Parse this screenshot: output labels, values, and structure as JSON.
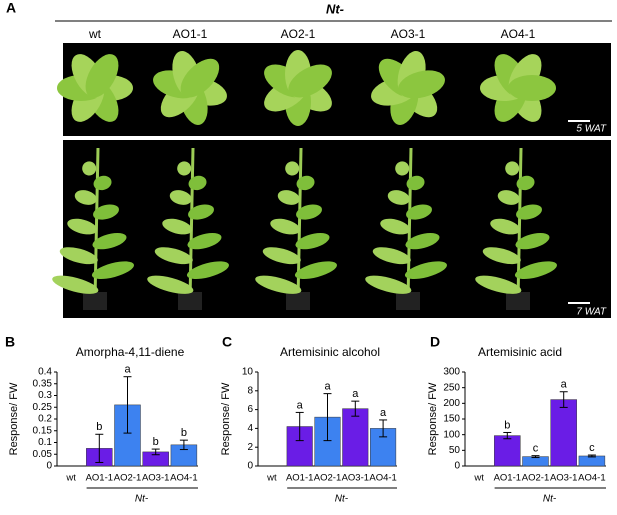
{
  "panel_a": {
    "label": "A",
    "group": "Nt-",
    "genotypes": [
      "wt",
      "AO1-1",
      "AO2-1",
      "AO3-1",
      "AO4-1"
    ],
    "stages": [
      "5 WAT",
      "7 WAT"
    ]
  },
  "chart_data": [
    {
      "type": "bar",
      "panel": "B",
      "title": "Amorpha-4,11-diene",
      "ylabel": "Response/ FW",
      "xlabel": "Nt-",
      "categories": [
        "wt",
        "AO1-1",
        "AO2-1",
        "AO3-1",
        "AO4-1"
      ],
      "values": [
        0,
        0.075,
        0.26,
        0.06,
        0.09
      ],
      "errors": [
        0,
        0.06,
        0.12,
        0.012,
        0.02
      ],
      "letters": [
        null,
        "b",
        "a",
        "b",
        "b"
      ],
      "colors": [
        "#6a1de6",
        "#6a1de6",
        "#3d82f0",
        "#6a1de6",
        "#3d82f0"
      ],
      "ylim": [
        0,
        0.4
      ],
      "yticks": [
        0,
        0.05,
        0.1,
        0.15,
        0.2,
        0.25,
        0.3,
        0.35,
        0.4
      ]
    },
    {
      "type": "bar",
      "panel": "C",
      "title": "Artemisinic alcohol",
      "ylabel": "Response/ FW",
      "xlabel": "Nt-",
      "categories": [
        "wt",
        "AO1-1",
        "AO2-1",
        "AO3-1",
        "AO4-1"
      ],
      "values": [
        0,
        4.2,
        5.2,
        6.1,
        4.0
      ],
      "errors": [
        0,
        1.5,
        2.5,
        0.8,
        0.9
      ],
      "letters": [
        null,
        "a",
        "a",
        "a",
        "a"
      ],
      "colors": [
        "#6a1de6",
        "#6a1de6",
        "#3d82f0",
        "#6a1de6",
        "#3d82f0"
      ],
      "ylim": [
        0,
        10
      ],
      "yticks": [
        0,
        2,
        4,
        6,
        8,
        10
      ]
    },
    {
      "type": "bar",
      "panel": "D",
      "title": "Artemisinic acid",
      "ylabel": "Response/ FW",
      "xlabel": "Nt-",
      "categories": [
        "wt",
        "AO1-1",
        "AO2-1",
        "AO3-1",
        "AO4-1"
      ],
      "values": [
        0,
        97,
        30,
        212,
        32
      ],
      "errors": [
        0,
        10,
        3,
        25,
        3
      ],
      "letters": [
        null,
        "b",
        "c",
        "a",
        "c"
      ],
      "colors": [
        "#6a1de6",
        "#6a1de6",
        "#3d82f0",
        "#6a1de6",
        "#3d82f0"
      ],
      "ylim": [
        0,
        300
      ],
      "yticks": [
        0,
        50,
        100,
        150,
        200,
        250,
        300
      ]
    }
  ]
}
